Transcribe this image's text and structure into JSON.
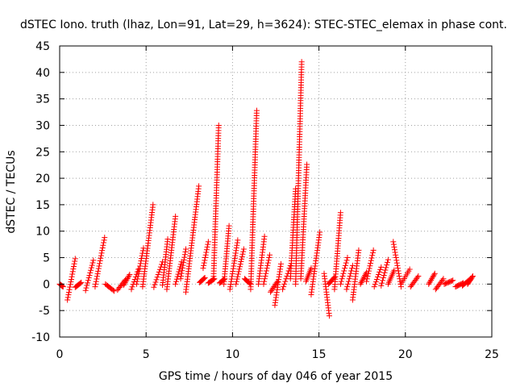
{
  "chart_data": {
    "type": "scatter",
    "title": "dSTEC Iono. truth (lhaz, Lon=91, Lat=29, h=3624): STEC-STEC_elemax in phase cont.",
    "xlabel": "GPS time / hours of day 046 of year 2015",
    "ylabel": "dSTEC  / TECUs",
    "xlim": [
      0,
      25
    ],
    "ylim": [
      -10,
      45
    ],
    "xticks": [
      0,
      5,
      10,
      15,
      20,
      25
    ],
    "yticks": [
      -10,
      -5,
      0,
      5,
      10,
      15,
      20,
      25,
      30,
      35,
      40,
      45
    ],
    "grid": true,
    "marker": "plus",
    "color": "#ff0000",
    "arcs": [
      [
        0.0,
        0.2,
        0.0,
        -0.5
      ],
      [
        0.45,
        0.9,
        -3.0,
        4.8
      ],
      [
        0.9,
        1.25,
        -0.6,
        0.3
      ],
      [
        1.5,
        1.95,
        -1.2,
        4.5
      ],
      [
        2.05,
        2.6,
        -0.5,
        8.8
      ],
      [
        2.65,
        3.15,
        0.0,
        -1.3
      ],
      [
        3.35,
        3.8,
        -1.1,
        0.8
      ],
      [
        3.7,
        4.05,
        -0.2,
        1.8
      ],
      [
        4.15,
        4.55,
        -1.0,
        2.8
      ],
      [
        4.45,
        4.85,
        0.0,
        6.8
      ],
      [
        4.8,
        5.4,
        -0.5,
        15.0
      ],
      [
        5.45,
        5.95,
        -0.6,
        4.2
      ],
      [
        5.95,
        6.25,
        -0.2,
        8.5
      ],
      [
        6.2,
        6.7,
        -1.0,
        12.8
      ],
      [
        6.7,
        7.05,
        0.0,
        4.2
      ],
      [
        7.0,
        7.3,
        1.0,
        6.6
      ],
      [
        7.3,
        8.05,
        -1.5,
        18.5
      ],
      [
        8.1,
        8.4,
        0.3,
        1.2
      ],
      [
        8.3,
        8.6,
        3.0,
        8.0
      ],
      [
        8.6,
        8.95,
        0.2,
        1.0
      ],
      [
        8.9,
        9.2,
        1.0,
        30.0
      ],
      [
        9.25,
        9.55,
        0.2,
        1.0
      ],
      [
        9.5,
        9.8,
        0.0,
        11.0
      ],
      [
        9.85,
        10.3,
        -1.0,
        8.3
      ],
      [
        10.2,
        10.65,
        0.0,
        6.6
      ],
      [
        10.7,
        11.05,
        1.0,
        0.0
      ],
      [
        11.05,
        11.4,
        -1.0,
        32.8
      ],
      [
        11.5,
        11.85,
        0.0,
        9.0
      ],
      [
        11.8,
        12.15,
        0.0,
        5.5
      ],
      [
        12.2,
        12.6,
        -1.5,
        0.5
      ],
      [
        12.45,
        12.8,
        -4.0,
        3.8
      ],
      [
        12.9,
        13.35,
        -1.0,
        3.5
      ],
      [
        13.35,
        13.65,
        1.0,
        18.0
      ],
      [
        13.65,
        14.0,
        0.0,
        42.0
      ],
      [
        13.95,
        14.3,
        1.0,
        22.6
      ],
      [
        14.25,
        14.55,
        0.5,
        3.0
      ],
      [
        14.55,
        15.05,
        -2.0,
        9.8
      ],
      [
        15.3,
        15.6,
        2.0,
        -6.0
      ],
      [
        15.55,
        15.9,
        0.0,
        1.3
      ],
      [
        15.9,
        16.25,
        -1.0,
        13.5
      ],
      [
        16.25,
        16.65,
        0.0,
        5.0
      ],
      [
        16.6,
        16.95,
        -1.0,
        3.5
      ],
      [
        16.95,
        17.3,
        -3.0,
        6.4
      ],
      [
        17.4,
        17.75,
        0.0,
        2.2
      ],
      [
        17.75,
        18.15,
        0.5,
        6.4
      ],
      [
        18.2,
        18.6,
        -0.5,
        3.2
      ],
      [
        18.6,
        19.0,
        -0.3,
        4.6
      ],
      [
        19.0,
        19.35,
        0.0,
        2.6
      ],
      [
        19.3,
        19.75,
        8.0,
        -0.5
      ],
      [
        19.75,
        20.25,
        0.0,
        2.8
      ],
      [
        20.3,
        20.75,
        -0.5,
        1.5
      ],
      [
        21.35,
        21.7,
        0.0,
        2.0
      ],
      [
        21.75,
        22.2,
        -1.0,
        1.0
      ],
      [
        22.25,
        22.75,
        0.0,
        0.7
      ],
      [
        22.9,
        23.35,
        -0.5,
        0.2
      ],
      [
        23.3,
        23.7,
        -0.3,
        0.8
      ],
      [
        23.6,
        23.9,
        0.0,
        1.5
      ]
    ]
  }
}
